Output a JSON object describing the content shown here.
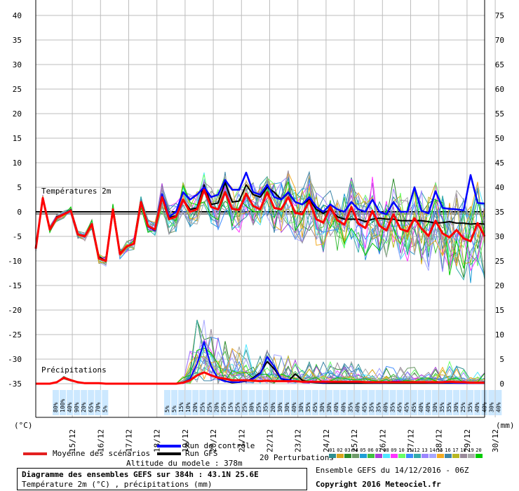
{
  "chart_data": {
    "type": "line",
    "title": "Diagramme des ensembles GEFS sur 384h : 43.1N 25.6E",
    "subtitle": "Température 2m (°C) , précipitations (mm)",
    "temp_label": "Températures 2m",
    "precip_label": "Précipitations",
    "y_left_unit": "(°C)",
    "y_right_unit": "(mm)",
    "y_left_ticks": [
      40,
      35,
      30,
      25,
      20,
      15,
      10,
      5,
      0,
      -5,
      -10,
      -15,
      -20,
      -25,
      -30,
      -35
    ],
    "y_right_ticks": [
      75,
      70,
      65,
      60,
      55,
      50,
      45,
      40,
      35,
      30,
      25,
      20,
      15,
      10,
      5,
      0
    ],
    "x_ticks": [
      "15/12",
      "16/12",
      "17/12",
      "18/12",
      "19/12",
      "20/12",
      "21/12",
      "22/12",
      "23/12",
      "24/12",
      "25/12",
      "26/12",
      "27/12",
      "28/12",
      "29/12",
      "30/12"
    ],
    "temp_mean": [
      -7.5,
      2.8,
      -3.6,
      -1.2,
      -0.5,
      0.2,
      -4.6,
      -5.0,
      -2.5,
      -9.5,
      -10.0,
      0.5,
      -8.6,
      -7.0,
      -6.5,
      2.0,
      -2.9,
      -3.6,
      3.0,
      -1.5,
      -1.0,
      2.5,
      0.0,
      0.5,
      4.5,
      1.0,
      0.5,
      4.0,
      0.6,
      0.4,
      3.7,
      1.2,
      0.5,
      4.0,
      0.8,
      0.5,
      3.0,
      -0.2,
      -0.5,
      2.2,
      -1.5,
      -2.2,
      1.0,
      -1.7,
      -2.6,
      1.0,
      -2.4,
      -3.3,
      0.2,
      -2.8,
      -3.8,
      -0.5,
      -3.5,
      -4.0,
      -1.3,
      -3.4,
      -4.9,
      -1.8,
      -4.4,
      -5.2,
      -3.7,
      -5.4,
      -6.0,
      -2.3,
      -5.0
    ],
    "temp_gfs": [
      -7.5,
      2.8,
      -3.6,
      -1.0,
      -0.5,
      0.4,
      -4.6,
      -5.0,
      -2.5,
      -9.2,
      -10.0,
      0.5,
      -8.6,
      -7.0,
      -6.5,
      2.0,
      -2.9,
      -3.6,
      3.3,
      -1.2,
      -0.8,
      2.5,
      0.5,
      0.8,
      5.5,
      1.5,
      1.8,
      6.0,
      2.0,
      2.2,
      5.5,
      3.5,
      3.0,
      5.0,
      4.0,
      2.5,
      3.8,
      2.0,
      1.5,
      2.5,
      0.5,
      -0.3,
      0.5,
      -1.0,
      -1.5,
      -1.5,
      -1.5,
      -2.0,
      -1.5,
      -1.3,
      -1.5,
      -1.5,
      -1.8,
      -1.8,
      -1.8,
      -1.8,
      -2.0,
      -2.3,
      -2.2,
      -2.0,
      -2.3,
      -2.3,
      -2.5,
      -2.4,
      -2.5
    ],
    "temp_control": [
      -7.5,
      2.8,
      -3.6,
      -1.2,
      -0.4,
      0.3,
      -4.6,
      -5.0,
      -2.5,
      -9.5,
      -10.0,
      0.5,
      -8.6,
      -7.0,
      -6.5,
      2.0,
      -3.0,
      -3.8,
      3.6,
      -1.0,
      0.0,
      4.0,
      2.5,
      3.5,
      5.0,
      3.0,
      3.5,
      6.5,
      4.5,
      4.5,
      8.0,
      4.0,
      3.5,
      5.5,
      3.0,
      2.5,
      4.0,
      2.0,
      1.5,
      3.0,
      1.0,
      0.0,
      1.5,
      0.5,
      0.0,
      2.0,
      0.5,
      0.0,
      2.5,
      0.0,
      -0.5,
      2.0,
      0.0,
      0.0,
      5.0,
      0.2,
      -0.3,
      4.2,
      0.8,
      0.6,
      0.5,
      0.3,
      7.5,
      1.8,
      1.7
    ],
    "precip_mean": [
      0,
      0,
      0,
      0.3,
      1.2,
      0.7,
      0.3,
      0.1,
      0.1,
      0.1,
      0,
      0,
      0,
      0,
      0,
      0,
      0,
      0,
      0,
      0,
      0,
      0.2,
      0.7,
      1.7,
      2.3,
      1.7,
      1.2,
      1.0,
      0.7,
      0.7,
      0.7,
      0.6,
      0.5,
      0.6,
      0.5,
      0.5,
      0.5,
      0.5,
      0.4,
      0.4,
      0.4,
      0.4,
      0.4,
      0.4,
      0.4,
      0.4,
      0.4,
      0.3,
      0.3,
      0.3,
      0.3,
      0.3,
      0.3,
      0.3,
      0.3,
      0.3,
      0.3,
      0.3,
      0.3,
      0.4,
      0.3,
      0.3,
      0.2,
      0.2,
      0.2
    ],
    "precip_gfs": [
      0,
      0,
      0,
      0.3,
      1.2,
      0.7,
      0.3,
      0.1,
      0.1,
      0.1,
      0,
      0,
      0,
      0,
      0,
      0,
      0,
      0,
      0,
      0,
      0,
      0.2,
      0.7,
      1.7,
      2.3,
      1.7,
      1.2,
      0.5,
      0.2,
      0.3,
      0.5,
      1.2,
      2.2,
      4.5,
      3.0,
      1.0,
      0.5,
      2.0,
      0.7,
      0.3,
      0.2,
      0.1,
      0.1,
      0.1,
      0.1,
      0.1,
      0.1,
      0.1,
      0.1,
      0.1,
      0.1,
      0.1,
      0.1,
      0.1,
      0.1,
      0.1,
      0.1,
      0.1,
      0.1,
      0.1,
      0.1,
      0.1,
      0.1,
      0.1,
      0.1
    ],
    "precip_control": [
      0,
      0,
      0,
      0.3,
      1.2,
      0.7,
      0.3,
      0.1,
      0.1,
      0.1,
      0,
      0,
      0,
      0,
      0,
      0,
      0,
      0,
      0,
      0,
      0,
      0.2,
      1.0,
      4.0,
      8.5,
      3.5,
      1.0,
      0.5,
      0.3,
      0.3,
      0.6,
      1.0,
      2.0,
      5.5,
      3.5,
      1.0,
      0.8,
      0.5,
      0.4,
      0.3,
      0.3,
      0.2,
      0.3,
      0.4,
      0.4,
      0.3,
      0.3,
      0.3,
      0.2,
      0.2,
      0.2,
      0.5,
      0.4,
      0.3,
      0.3,
      0.3,
      0.2,
      0.2,
      0.2,
      0.2,
      0.1,
      0.1,
      0.1,
      0.1,
      0.1
    ],
    "precip_prob": [
      "80%",
      "100%",
      "40%",
      "90%",
      "20%",
      "65%",
      "70%",
      "5%",
      "5%",
      "5%",
      "15%",
      "10%",
      "20%",
      "25%",
      "25%",
      "20%",
      "25%",
      "15%",
      "25%",
      "25%",
      "30%",
      "25%",
      "35%",
      "20%",
      "30%",
      "30%",
      "40%",
      "30%",
      "35%",
      "45%",
      "30%",
      "30%",
      "40%",
      "40%",
      "35%",
      "40%",
      "45%",
      "35%",
      "35%",
      "40%",
      "35%",
      "45%",
      "45%",
      "45%",
      "40%",
      "40%",
      "30%",
      "35%",
      "35%",
      "30%",
      "25%",
      "35%",
      "40%",
      "40%",
      "30%",
      "40%"
    ],
    "ylim": [
      -35,
      40
    ]
  },
  "legend": {
    "mean_label": "Moyenne des scénarios",
    "control_label": "Run de contrôle",
    "gfs_label": "Run GFS",
    "perturbations_label": "20 Perturbations",
    "perturbation_ids": [
      "01",
      "02",
      "03",
      "04",
      "05",
      "06",
      "07",
      "08",
      "09",
      "10",
      "11",
      "12",
      "13",
      "14",
      "15",
      "16",
      "17",
      "18",
      "19",
      "20"
    ],
    "perturbation_colors": [
      "#2f8f8f",
      "#d9a41a",
      "#2a8b2a",
      "#6f9a6a",
      "#1f9ed6",
      "#3fbf3f",
      "#aa3fd8",
      "#4fe6ff",
      "#ff35ff",
      "#66ff66",
      "#3c8bff",
      "#33aaaa",
      "#9b86ff",
      "#a7a7ff",
      "#f2aa22",
      "#3d86a8",
      "#b7b722",
      "#9a8a9a",
      "#aaa",
      "#00cc00"
    ],
    "mean_color": "#ff0000",
    "control_color": "#0000ff",
    "gfs_color": "#000000"
  },
  "info": {
    "altitude": "Altitude du modele : 378m",
    "run": "Ensemble GEFS du 14/12/2016 - 06Z",
    "copyright": "Copyright 2016 Meteociel.fr"
  }
}
